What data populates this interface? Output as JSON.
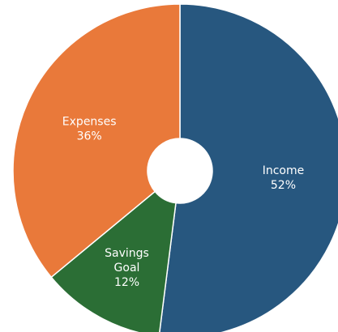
{
  "chart_data": {
    "type": "pie",
    "donut": true,
    "categories": [
      "Income",
      "Savings Goal",
      "Expenses"
    ],
    "values": [
      52,
      12,
      36
    ],
    "value_labels": [
      "52%",
      "12%",
      "36%"
    ],
    "colors": [
      "#27577f",
      "#2b6e35",
      "#e9793a"
    ],
    "legend": "none",
    "title": ""
  }
}
